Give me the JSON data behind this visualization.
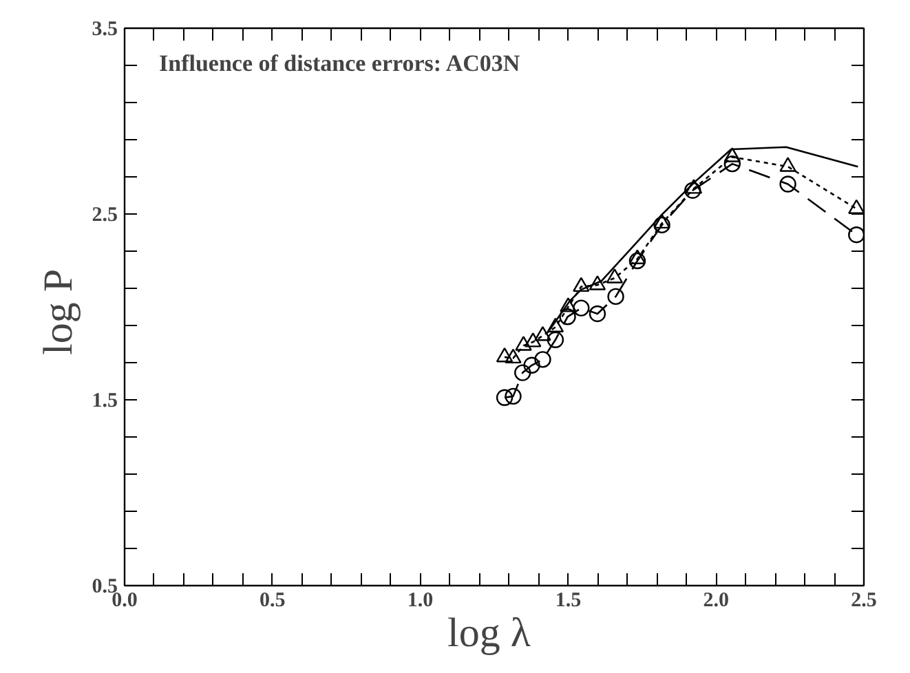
{
  "chart_data": {
    "type": "line",
    "title": "Influence of distance errors: AC03N",
    "xlabel": "log  λ",
    "ylabel": "log  P",
    "xlim": [
      0.0,
      2.5
    ],
    "ylim": [
      0.5,
      3.5
    ],
    "xticks": [
      {
        "value": 0.0,
        "label": "0.0"
      },
      {
        "value": 0.5,
        "label": "0.5"
      },
      {
        "value": 1.0,
        "label": "1.0"
      },
      {
        "value": 1.5,
        "label": "1.5"
      },
      {
        "value": 2.0,
        "label": "2.0"
      },
      {
        "value": 2.5,
        "label": "2.5"
      }
    ],
    "yticks": [
      0.5,
      1.5,
      2.5,
      3.5
    ],
    "grid": false,
    "series": [
      {
        "color": "#000000",
        "marker": "none",
        "line_style": "solid",
        "x": [
          1.437,
          1.505,
          1.544,
          1.613,
          1.72,
          1.817,
          1.925,
          2.051,
          2.237,
          2.48
        ],
        "values": [
          1.876,
          2.031,
          2.093,
          2.14,
          2.326,
          2.497,
          2.668,
          2.848,
          2.86,
          2.755
        ]
      },
      {
        "color": "#000000",
        "marker": "triangle",
        "line_style": "dotted",
        "x": [
          1.285,
          1.314,
          1.349,
          1.381,
          1.414,
          1.457,
          1.5,
          1.544,
          1.599,
          1.657,
          1.734,
          1.817,
          1.925,
          2.055,
          2.243,
          2.475
        ],
        "values": [
          1.73,
          1.724,
          1.792,
          1.811,
          1.845,
          1.891,
          2.0,
          2.109,
          2.118,
          2.155,
          2.258,
          2.45,
          2.637,
          2.807,
          2.755,
          2.528
        ]
      },
      {
        "color": "#000000",
        "marker": "circle",
        "line_style": "dashed",
        "x": [
          1.285,
          1.314,
          1.346,
          1.377,
          1.414,
          1.457,
          1.498,
          1.544,
          1.599,
          1.661,
          1.734,
          1.817,
          1.921,
          2.055,
          2.243,
          2.475
        ],
        "values": [
          1.512,
          1.519,
          1.646,
          1.686,
          1.717,
          1.823,
          1.947,
          1.994,
          1.963,
          2.056,
          2.248,
          2.441,
          2.627,
          2.77,
          2.661,
          2.388
        ]
      }
    ]
  }
}
